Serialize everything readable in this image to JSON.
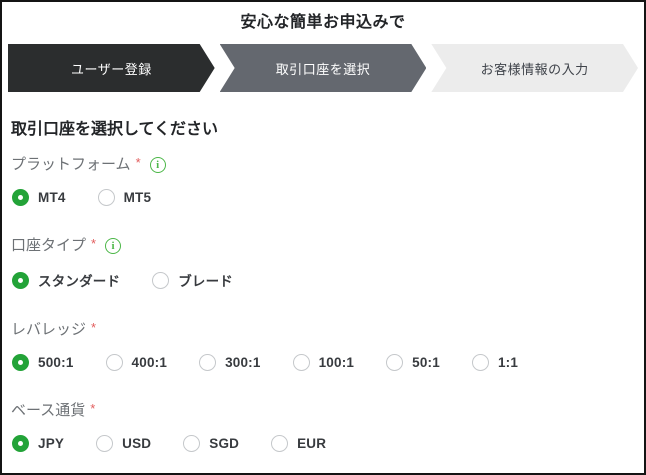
{
  "page": {
    "title": "安心な簡単お申込みで"
  },
  "steps": [
    {
      "name": "user-registration",
      "label": "ユーザー登録",
      "state": "done"
    },
    {
      "name": "select-account",
      "label": "取引口座を選択",
      "state": "active"
    },
    {
      "name": "customer-info-input",
      "label": "お客様情報の入力",
      "state": "upcoming"
    }
  ],
  "form": {
    "heading": "取引口座を選択してください",
    "required_marker": "*",
    "info_icon_glyph": "i",
    "sections": [
      {
        "name": "platform",
        "label": "プラットフォーム",
        "required": true,
        "has_info": true,
        "options": [
          "MT4",
          "MT5"
        ],
        "selected": "MT4"
      },
      {
        "name": "account-type",
        "label": "口座タイプ",
        "required": true,
        "has_info": true,
        "options": [
          "スタンダード",
          "ブレード"
        ],
        "selected": "スタンダード"
      },
      {
        "name": "leverage",
        "label": "レバレッジ",
        "required": true,
        "has_info": false,
        "options": [
          "500:1",
          "400:1",
          "300:1",
          "100:1",
          "50:1",
          "1:1"
        ],
        "selected": "500:1"
      },
      {
        "name": "base-currency",
        "label": "ベース通貨",
        "required": true,
        "has_info": false,
        "options": [
          "JPY",
          "USD",
          "SGD",
          "EUR"
        ],
        "selected": "JPY"
      }
    ]
  },
  "colors": {
    "accent-green": "#23a338",
    "info-green": "#4cb748",
    "required-red": "#e25c5c",
    "step-done-bg": "#2b2d2e",
    "step-active-bg": "#64686f",
    "step-upcoming-bg": "#ececec",
    "label-gray": "#6d7175",
    "text-dark": "#232528",
    "radio-border": "#c5c8cb"
  }
}
